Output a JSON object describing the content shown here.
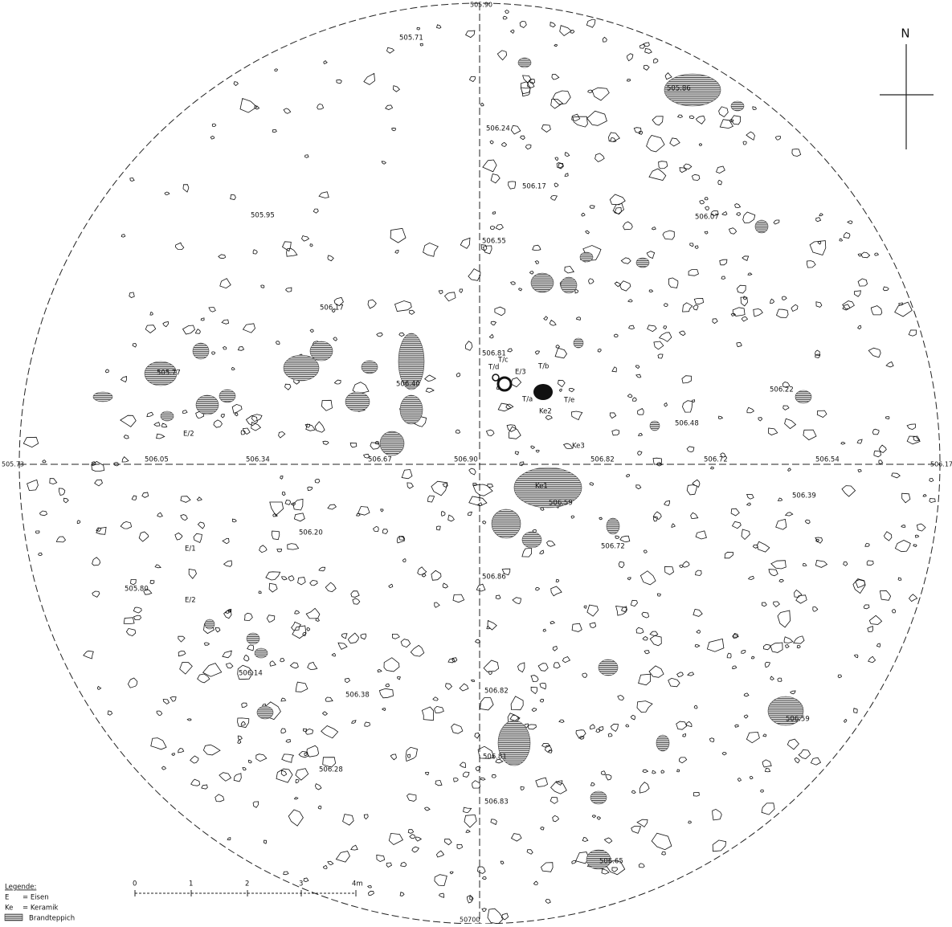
{
  "axis_labels": {
    "north": "505.90",
    "west": "505.73",
    "east": "506.17",
    "south": "50700"
  },
  "north_arrow": "N",
  "elevations": [
    "505.71",
    "506.24",
    "505.86",
    "506.17",
    "505.95",
    "506.55",
    "506.17",
    "506.07",
    "506.81",
    "505.77",
    "506.40",
    "506.22",
    "506.48",
    "506.05",
    "506.34",
    "506.67",
    "506.90",
    "506.82",
    "506.72",
    "506.54",
    "506.59",
    "506.39",
    "506.72",
    "506.20",
    "506.86",
    "505.80",
    "506.14",
    "506.38",
    "506.82",
    "506.59",
    "506.28",
    "506.81",
    "506.83",
    "506.65"
  ],
  "finds": [
    "E/2",
    "T/d",
    "T/c",
    "E/3",
    "T/b",
    "T/a",
    "T/e",
    "Ke2",
    "Ke3",
    "Ke1",
    "E/1",
    "E/2"
  ],
  "legend": {
    "title": "Legende:",
    "items": [
      {
        "abbr": "E",
        "text": "= Eisen"
      },
      {
        "abbr": "Ke",
        "text": "= Keramik"
      },
      {
        "text": "Brandteppich"
      }
    ]
  },
  "scale": [
    "0",
    "1",
    "2",
    "3",
    "4m"
  ]
}
